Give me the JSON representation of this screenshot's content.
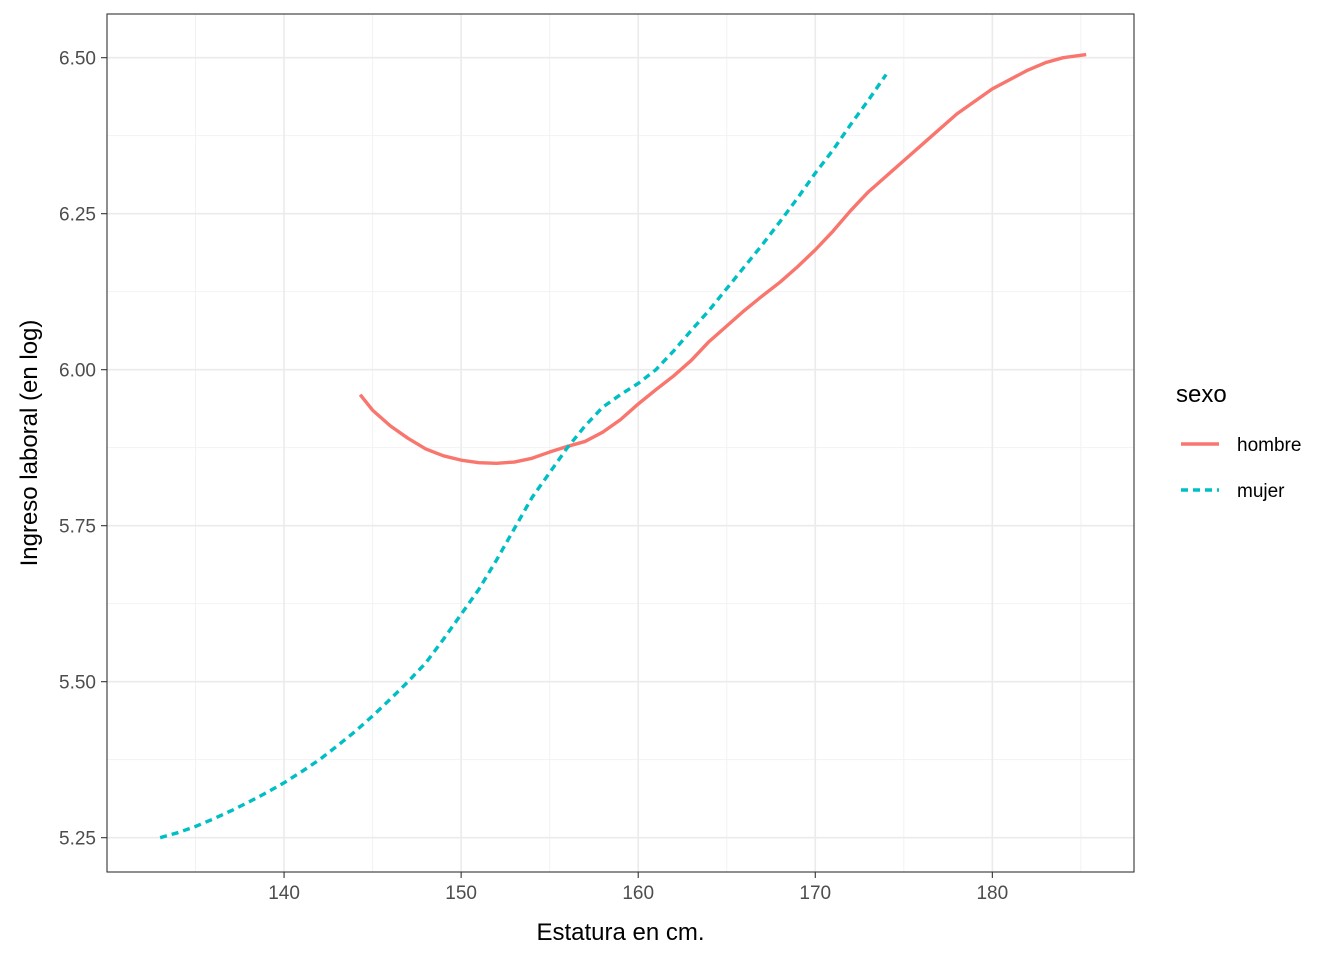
{
  "chart_data": {
    "type": "line",
    "title": "",
    "xlabel": "Estatura en cm.",
    "ylabel": "Ingreso laboral (en log)",
    "xlim": [
      130.0,
      188.0
    ],
    "ylim": [
      5.195,
      6.57
    ],
    "x_ticks": [
      140,
      150,
      160,
      170,
      180
    ],
    "x_tick_labels": [
      "140",
      "150",
      "160",
      "170",
      "180"
    ],
    "y_ticks": [
      5.25,
      5.5,
      5.75,
      6.0,
      6.25,
      6.5
    ],
    "y_tick_labels": [
      "5.25",
      "5.50",
      "5.75",
      "6.00",
      "6.25",
      "6.50"
    ],
    "grid": true,
    "legend": {
      "title": "sexo",
      "position": "right"
    },
    "series": [
      {
        "name": "hombre",
        "color": "#F8766D",
        "line_style": "solid",
        "x": [
          144.3,
          145,
          146,
          147,
          148,
          149,
          150,
          151,
          152,
          153,
          154,
          155,
          156,
          157,
          158,
          159,
          160,
          161,
          162,
          163,
          164,
          165,
          166,
          167,
          168,
          169,
          170,
          171,
          172,
          173,
          174,
          175,
          176,
          177,
          178,
          179,
          180,
          181,
          182,
          183,
          184,
          185.3
        ],
        "y": [
          5.96,
          5.935,
          5.91,
          5.89,
          5.873,
          5.862,
          5.855,
          5.851,
          5.85,
          5.852,
          5.858,
          5.868,
          5.877,
          5.885,
          5.9,
          5.92,
          5.945,
          5.968,
          5.99,
          6.015,
          6.045,
          6.07,
          6.095,
          6.118,
          6.14,
          6.165,
          6.192,
          6.222,
          6.255,
          6.285,
          6.31,
          6.335,
          6.36,
          6.385,
          6.41,
          6.43,
          6.45,
          6.465,
          6.48,
          6.492,
          6.5,
          6.505
        ]
      },
      {
        "name": "mujer",
        "color": "#00BFC4",
        "line_style": "dashed",
        "x": [
          133,
          134,
          135,
          136,
          137,
          138,
          139,
          140,
          141,
          142,
          143,
          144,
          145,
          146,
          147,
          148,
          149,
          150,
          151,
          152,
          153,
          154,
          155,
          156,
          157,
          158,
          159,
          160,
          161,
          162,
          163,
          164,
          165,
          166,
          167,
          168,
          169,
          170,
          171,
          172,
          173,
          174
        ],
        "y": [
          5.25,
          5.258,
          5.268,
          5.28,
          5.293,
          5.307,
          5.322,
          5.338,
          5.356,
          5.375,
          5.397,
          5.42,
          5.445,
          5.472,
          5.5,
          5.53,
          5.568,
          5.608,
          5.648,
          5.695,
          5.745,
          5.795,
          5.835,
          5.875,
          5.91,
          5.94,
          5.96,
          5.978,
          6.0,
          6.03,
          6.063,
          6.095,
          6.13,
          6.165,
          6.2,
          6.237,
          6.275,
          6.315,
          6.352,
          6.393,
          6.432,
          6.473
        ]
      }
    ]
  }
}
